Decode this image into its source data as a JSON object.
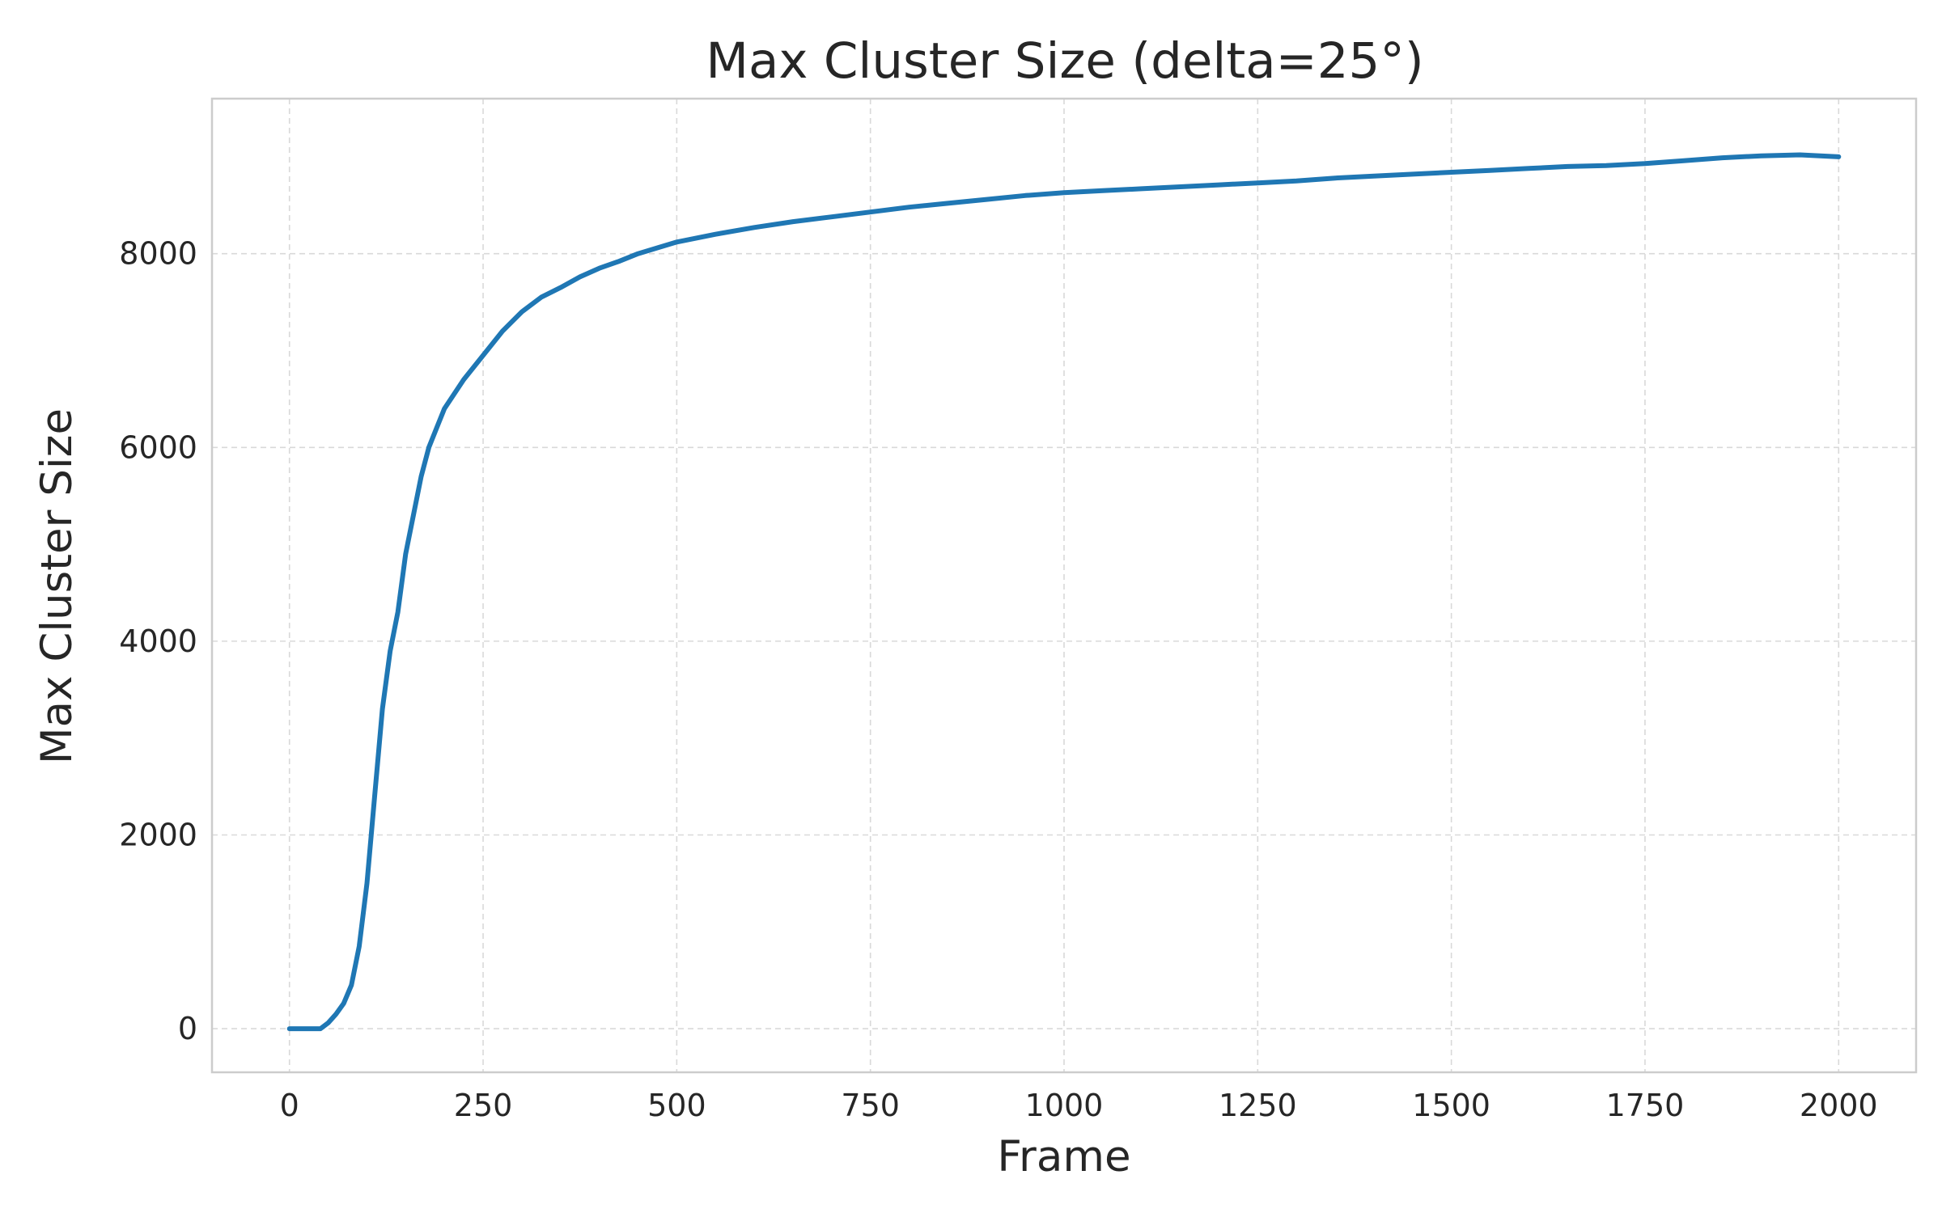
{
  "chart_data": {
    "type": "line",
    "title": "Max Cluster Size (delta=25°)",
    "xlabel": "Frame",
    "ylabel": "Max Cluster Size",
    "xlim": [
      -100,
      2100
    ],
    "ylim": [
      -450,
      9600
    ],
    "xticks": [
      0,
      250,
      500,
      750,
      1000,
      1250,
      1500,
      1750,
      2000
    ],
    "yticks": [
      0,
      2000,
      4000,
      6000,
      8000
    ],
    "grid": true,
    "line_color": "#1f77b4",
    "series": [
      {
        "x": [
          0,
          20,
          40,
          50,
          60,
          70,
          80,
          90,
          100,
          110,
          120,
          130,
          140,
          150,
          160,
          170,
          180,
          190,
          200,
          225,
          250,
          275,
          300,
          325,
          350,
          375,
          400,
          425,
          450,
          475,
          500,
          550,
          600,
          650,
          700,
          750,
          800,
          850,
          900,
          950,
          1000,
          1050,
          1100,
          1150,
          1200,
          1250,
          1300,
          1350,
          1400,
          1450,
          1500,
          1550,
          1600,
          1650,
          1700,
          1750,
          1800,
          1850,
          1900,
          1950,
          2000
        ],
        "values": [
          0,
          0,
          0,
          60,
          150,
          260,
          450,
          850,
          1500,
          2400,
          3300,
          3900,
          4300,
          4900,
          5300,
          5700,
          6000,
          6200,
          6400,
          6700,
          6950,
          7200,
          7400,
          7550,
          7650,
          7760,
          7850,
          7920,
          8000,
          8060,
          8120,
          8200,
          8270,
          8330,
          8380,
          8430,
          8480,
          8520,
          8560,
          8600,
          8630,
          8650,
          8670,
          8690,
          8710,
          8730,
          8750,
          8780,
          8800,
          8820,
          8840,
          8860,
          8880,
          8900,
          8910,
          8930,
          8960,
          8990,
          9010,
          9020,
          9000
        ]
      }
    ]
  }
}
